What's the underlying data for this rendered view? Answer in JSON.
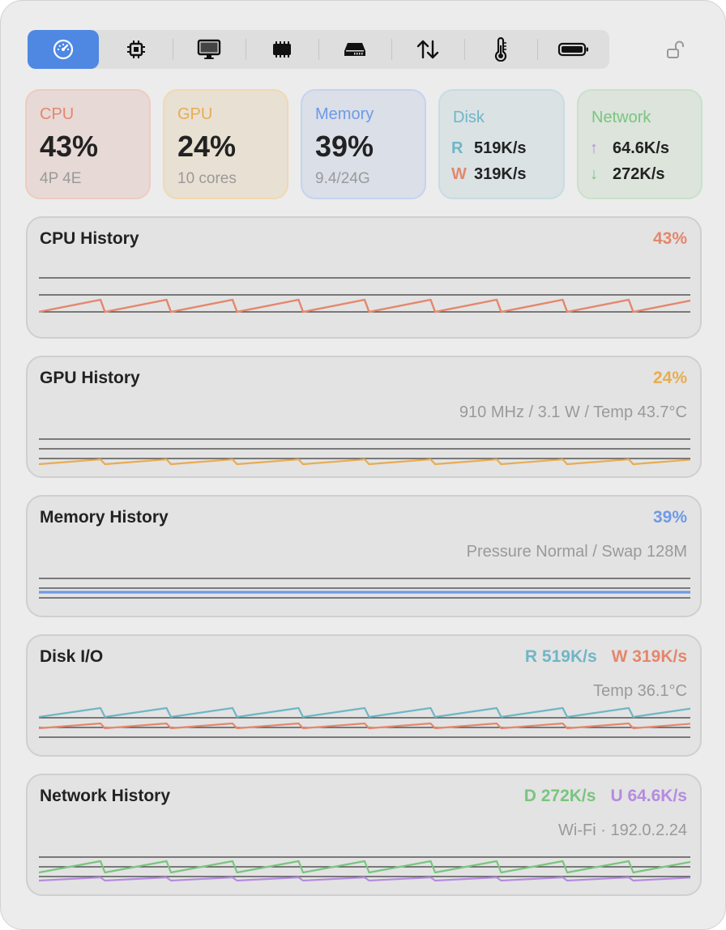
{
  "colors": {
    "cpu": "#e4876c",
    "gpu": "#e8ac52",
    "memory": "#6f9ae6",
    "disk": "#6fb6c6",
    "network": "#79c57f",
    "upload": "#b58be0",
    "accent": "#4f88e3"
  },
  "toolbar": {
    "tabs": [
      {
        "icon": "gauge-icon"
      },
      {
        "icon": "cpu-chip-icon"
      },
      {
        "icon": "display-icon"
      },
      {
        "icon": "memory-icon"
      },
      {
        "icon": "disk-icon"
      },
      {
        "icon": "arrows-up-down-icon"
      },
      {
        "icon": "thermometer-icon"
      },
      {
        "icon": "battery-icon"
      }
    ],
    "active_tab": 0,
    "lock_icon": "unlock-icon"
  },
  "summary": {
    "cpu": {
      "label": "CPU",
      "value": "43%",
      "sub": "4P 4E"
    },
    "gpu": {
      "label": "GPU",
      "value": "24%",
      "sub": "10 cores"
    },
    "memory": {
      "label": "Memory",
      "value": "39%",
      "sub": "9.4/24G"
    },
    "disk": {
      "label": "Disk",
      "read_key": "R",
      "read": "519K/s",
      "write_key": "W",
      "write": "319K/s"
    },
    "network": {
      "label": "Network",
      "up_arrow": "↑",
      "up": "64.6K/s",
      "down_arrow": "↓",
      "down": "272K/s"
    }
  },
  "panels": {
    "cpu": {
      "title": "CPU History",
      "value": "43%"
    },
    "gpu": {
      "title": "GPU History",
      "value": "24%",
      "info": "910 MHz / 3.1 W / Temp 43.7°C"
    },
    "memory": {
      "title": "Memory History",
      "value": "39%",
      "info": "Pressure Normal / Swap 128M"
    },
    "disk": {
      "title": "Disk I/O",
      "read": "R 519K/s",
      "write": "W 319K/s",
      "info": "Temp 36.1°C"
    },
    "network": {
      "title": "Network History",
      "down": "D 272K/s",
      "up": "U 64.6K/s",
      "info": "Wi-Fi · 192.0.2.24"
    }
  }
}
